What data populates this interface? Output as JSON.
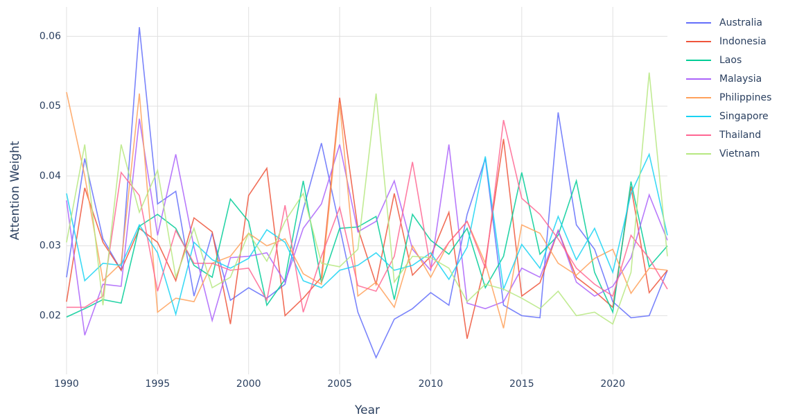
{
  "chart_data": {
    "type": "line",
    "x_label": "Year",
    "y_label": "Attention Weight",
    "x": [
      1990,
      1991,
      1992,
      1993,
      1994,
      1995,
      1996,
      1997,
      1998,
      1999,
      2000,
      2001,
      2002,
      2003,
      2004,
      2005,
      2006,
      2007,
      2008,
      2009,
      2010,
      2011,
      2012,
      2013,
      2014,
      2015,
      2016,
      2017,
      2018,
      2019,
      2020,
      2021,
      2022,
      2023
    ],
    "xlim": [
      1990,
      2023
    ],
    "xticks": [
      1990,
      1995,
      2000,
      2005,
      2010,
      2015,
      2020
    ],
    "ylim": [
      0.0116,
      0.0642
    ],
    "yticks": [
      0.02,
      0.03,
      0.04,
      0.05,
      0.06
    ],
    "grid": true,
    "legend": "right",
    "series": [
      {
        "name": "Australia",
        "color": "#636efa",
        "values": [
          0.0255,
          0.0425,
          0.031,
          0.0265,
          0.0613,
          0.036,
          0.0378,
          0.0228,
          0.0318,
          0.0222,
          0.024,
          0.0225,
          0.0245,
          0.0352,
          0.0447,
          0.0327,
          0.0205,
          0.014,
          0.0195,
          0.021,
          0.0233,
          0.0215,
          0.0345,
          0.0425,
          0.0215,
          0.02,
          0.0197,
          0.0491,
          0.033,
          0.0295,
          0.022,
          0.0197,
          0.02,
          0.0265
        ]
      },
      {
        "name": "Indonesia",
        "color": "#EF553B",
        "values": [
          0.022,
          0.0383,
          0.0305,
          0.0265,
          0.0325,
          0.0305,
          0.025,
          0.034,
          0.032,
          0.0188,
          0.0372,
          0.0411,
          0.02,
          0.0225,
          0.0255,
          0.0512,
          0.0325,
          0.0245,
          0.0375,
          0.0258,
          0.0285,
          0.0348,
          0.0167,
          0.0275,
          0.0453,
          0.0228,
          0.0247,
          0.0322,
          0.0255,
          0.0235,
          0.0212,
          0.0385,
          0.0233,
          0.0265
        ]
      },
      {
        "name": "Laos",
        "color": "#00cc96",
        "values": [
          0.0198,
          0.021,
          0.0223,
          0.0218,
          0.0328,
          0.0345,
          0.0325,
          0.0272,
          0.0255,
          0.0367,
          0.0335,
          0.0215,
          0.0252,
          0.0393,
          0.0247,
          0.0325,
          0.0327,
          0.0342,
          0.0223,
          0.0345,
          0.0308,
          0.0288,
          0.0325,
          0.024,
          0.0285,
          0.0405,
          0.0288,
          0.0315,
          0.0393,
          0.0262,
          0.0205,
          0.0392,
          0.027,
          0.03
        ]
      },
      {
        "name": "Malaysia",
        "color": "#ab63fa",
        "values": [
          0.0365,
          0.0172,
          0.0245,
          0.0242,
          0.0482,
          0.0315,
          0.0431,
          0.0298,
          0.0193,
          0.0283,
          0.0285,
          0.029,
          0.0248,
          0.0325,
          0.036,
          0.0445,
          0.032,
          0.0335,
          0.0393,
          0.0295,
          0.0265,
          0.0445,
          0.0218,
          0.021,
          0.022,
          0.0268,
          0.0255,
          0.0322,
          0.0248,
          0.0228,
          0.0242,
          0.0283,
          0.0373,
          0.0308
        ]
      },
      {
        "name": "Philippines",
        "color": "#FFA15A",
        "values": [
          0.052,
          0.04,
          0.025,
          0.0275,
          0.0518,
          0.0205,
          0.0225,
          0.022,
          0.0275,
          0.0285,
          0.0318,
          0.03,
          0.031,
          0.026,
          0.0245,
          0.0505,
          0.0228,
          0.0248,
          0.0212,
          0.03,
          0.0255,
          0.0305,
          0.0335,
          0.0275,
          0.0182,
          0.033,
          0.0318,
          0.0275,
          0.0258,
          0.0282,
          0.0295,
          0.0232,
          0.0268,
          0.0265
        ]
      },
      {
        "name": "Singapore",
        "color": "#19d3f3",
        "values": [
          0.0375,
          0.025,
          0.0275,
          0.0272,
          0.033,
          0.029,
          0.0202,
          0.0305,
          0.028,
          0.0268,
          0.0282,
          0.0323,
          0.0305,
          0.025,
          0.024,
          0.0265,
          0.0272,
          0.029,
          0.0265,
          0.0272,
          0.029,
          0.0252,
          0.0298,
          0.0428,
          0.0238,
          0.0302,
          0.0268,
          0.0342,
          0.028,
          0.0325,
          0.0262,
          0.0375,
          0.0431,
          0.0315
        ]
      },
      {
        "name": "Thailand",
        "color": "#FF6692",
        "values": [
          0.0212,
          0.0212,
          0.0228,
          0.0405,
          0.0372,
          0.0235,
          0.0322,
          0.0275,
          0.0275,
          0.0265,
          0.0268,
          0.0222,
          0.0358,
          0.0205,
          0.0285,
          0.0355,
          0.0243,
          0.0235,
          0.0285,
          0.042,
          0.0268,
          0.0305,
          0.0335,
          0.0268,
          0.048,
          0.0368,
          0.0345,
          0.031,
          0.0268,
          0.0245,
          0.0228,
          0.0315,
          0.0282,
          0.0238
        ]
      },
      {
        "name": "Vietnam",
        "color": "#B6E880",
        "values": [
          0.0305,
          0.0445,
          0.0215,
          0.0445,
          0.0348,
          0.0408,
          0.0255,
          0.0325,
          0.024,
          0.0255,
          0.0318,
          0.0278,
          0.0335,
          0.0375,
          0.0275,
          0.027,
          0.0295,
          0.0518,
          0.0248,
          0.0285,
          0.0283,
          0.0268,
          0.022,
          0.0245,
          0.0238,
          0.0225,
          0.021,
          0.0235,
          0.02,
          0.0205,
          0.0188,
          0.0262,
          0.0548,
          0.0285
        ]
      }
    ]
  }
}
